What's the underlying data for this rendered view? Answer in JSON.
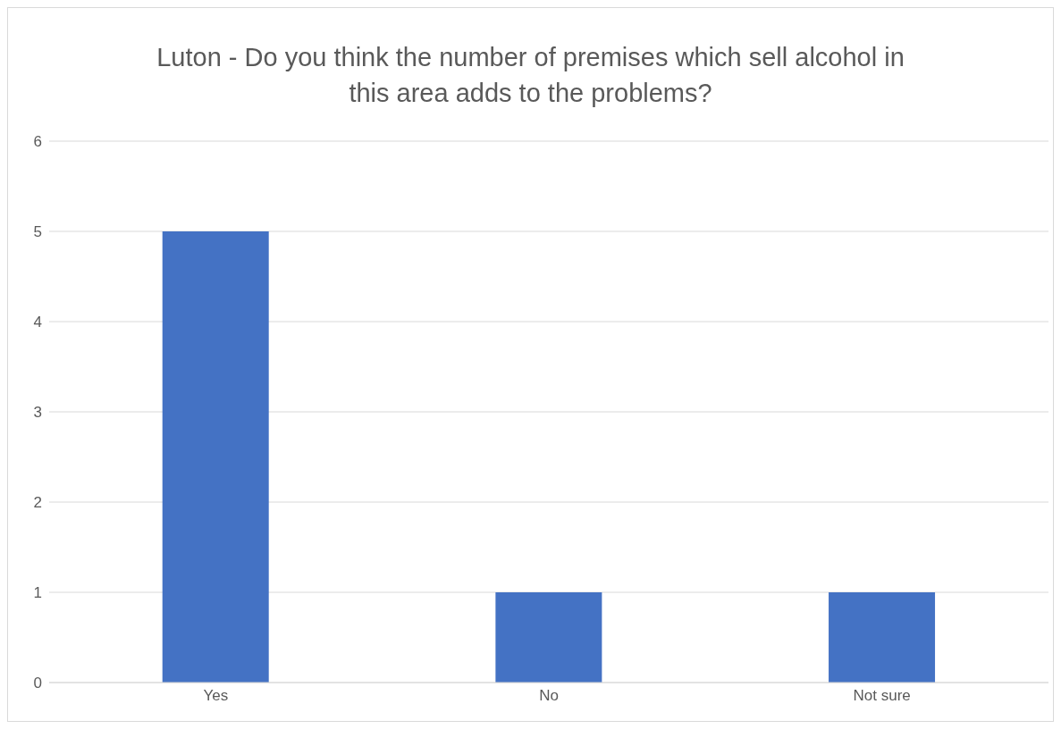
{
  "chart_data": {
    "type": "bar",
    "title": "Luton - Do you think the number of premises which sell alcohol in this area adds to the problems?",
    "categories": [
      "Yes",
      "No",
      "Not sure"
    ],
    "values": [
      5,
      1,
      1
    ],
    "color": "#4472c4",
    "ylim": [
      0,
      6
    ],
    "yticks": [
      0,
      1,
      2,
      3,
      4,
      5,
      6
    ],
    "grid": "y"
  }
}
